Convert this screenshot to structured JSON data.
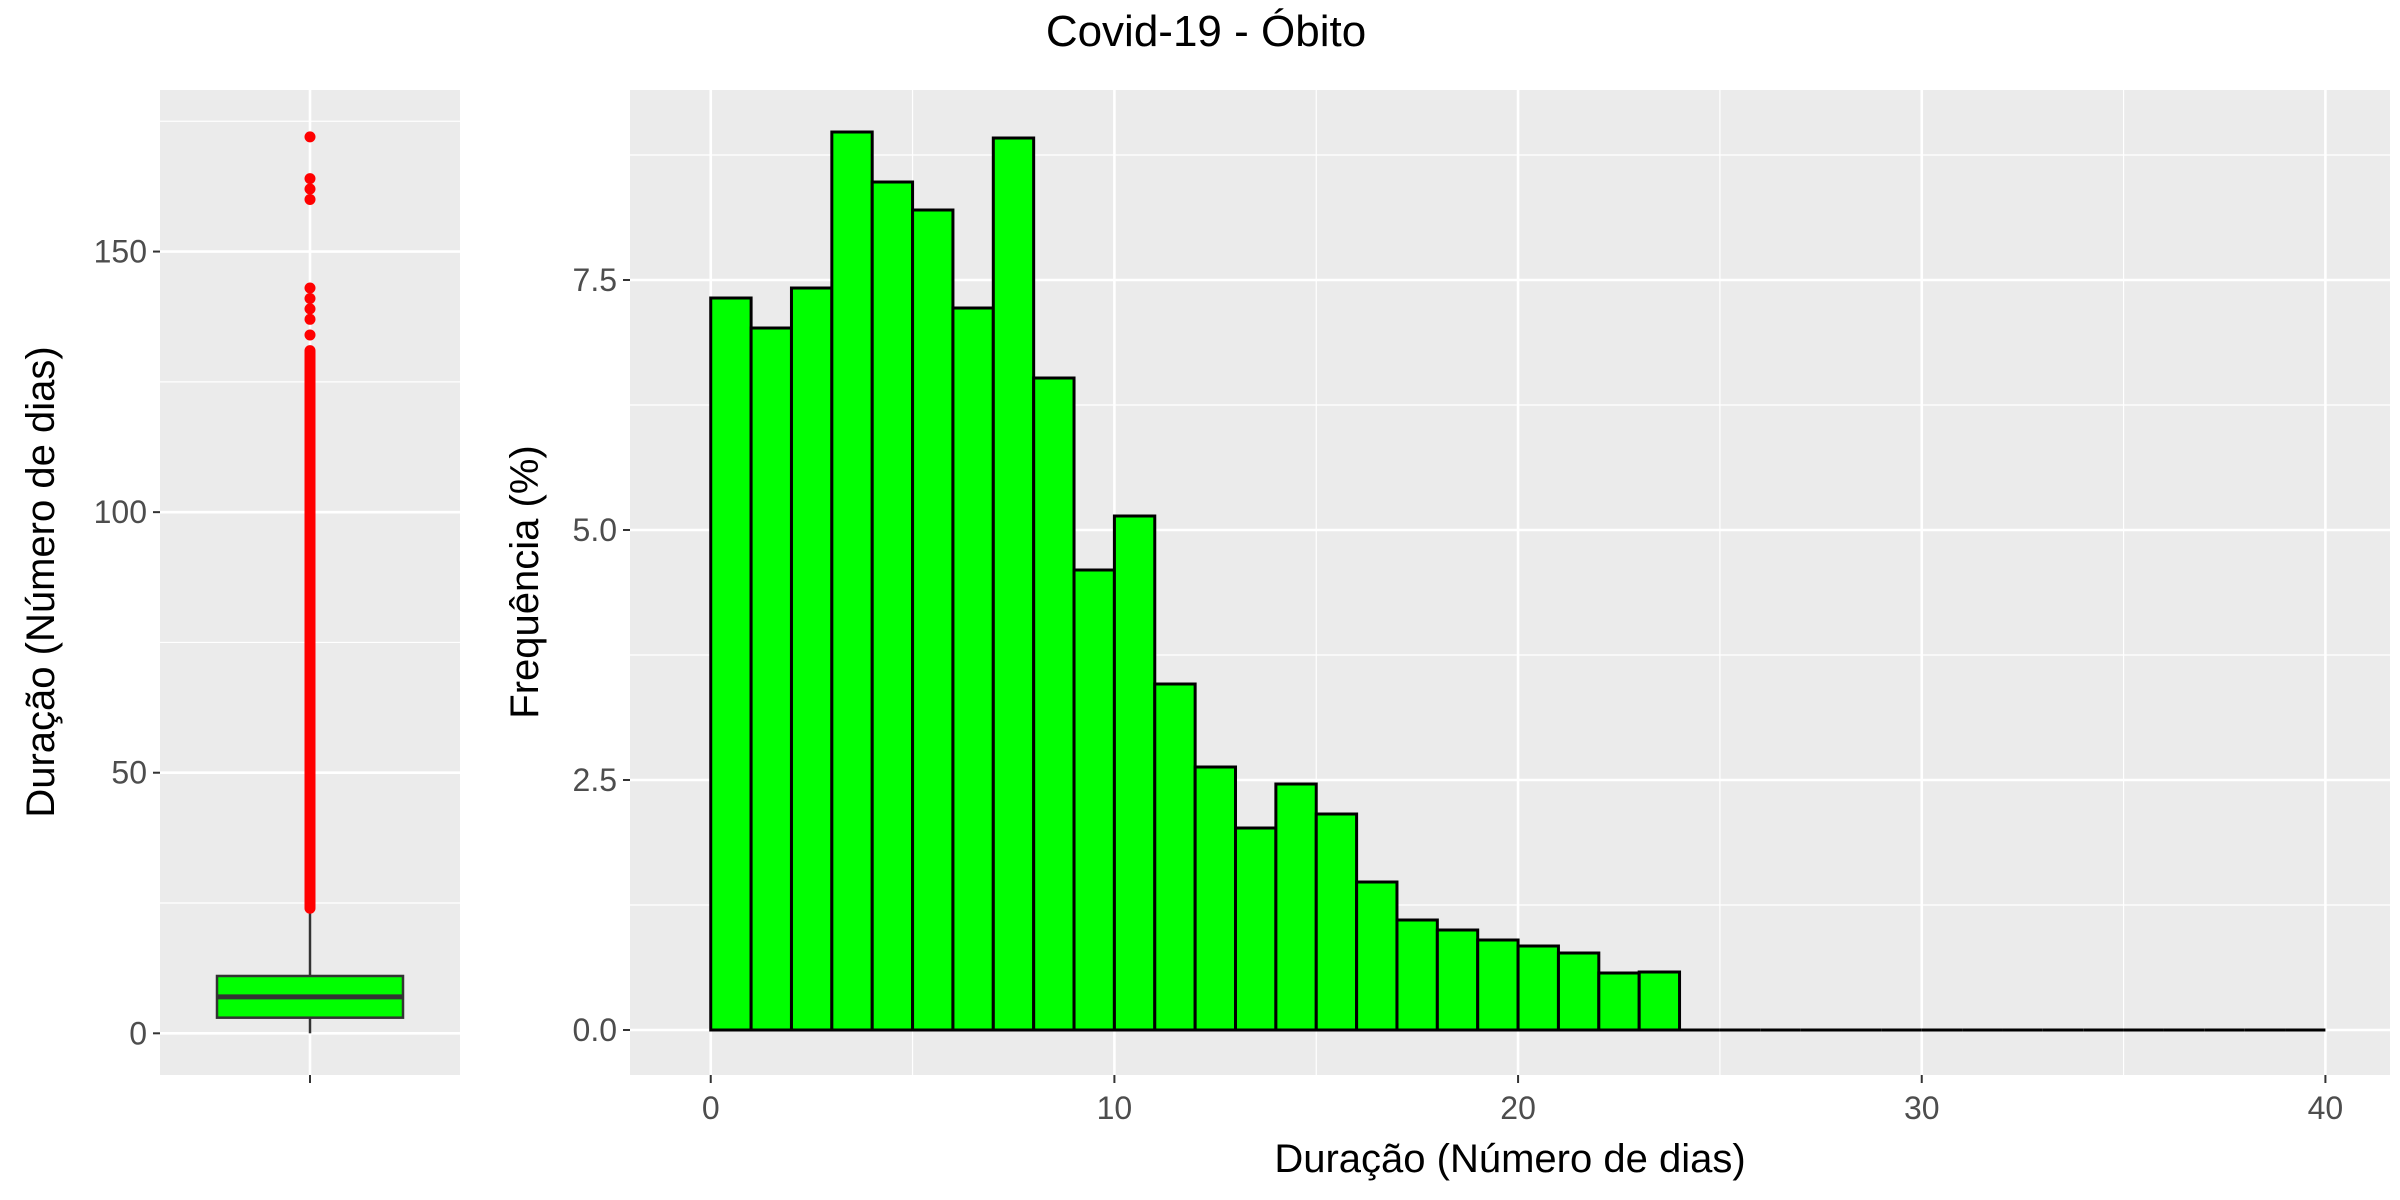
{
  "title": "Covid-19 - Óbito",
  "colors": {
    "panel_bg": "#ebebeb",
    "grid": "#ffffff",
    "fill": "#00ff00",
    "outline": "#000000",
    "outlier": "#ff0000",
    "tick_text": "#4d4d4d"
  },
  "chart_data": [
    {
      "type": "box",
      "ylabel": "Duração (Número de dias)",
      "xlabel": "",
      "ylim": [
        -8,
        181
      ],
      "yticks": [
        0,
        50,
        100,
        150
      ],
      "ytick_labels": [
        "0",
        "50",
        "100",
        "150"
      ],
      "grid": true,
      "box": {
        "min": 0,
        "q1": 3,
        "median": 7,
        "q3": 11,
        "whisker_high": 23
      },
      "outliers_band": [
        24,
        131
      ],
      "outliers": [
        134,
        137,
        139,
        141,
        143,
        160,
        162,
        164,
        172
      ]
    },
    {
      "type": "bar",
      "xlabel": "Duração (Número de dias)",
      "ylabel": "Frequência (%)",
      "xlim": [
        -2,
        41.6
      ],
      "ylim": [
        -0.45,
        9.4
      ],
      "xticks": [
        0,
        10,
        20,
        30,
        40
      ],
      "xtick_labels": [
        "0",
        "10",
        "20",
        "30",
        "40"
      ],
      "yticks": [
        0,
        2.5,
        5.0,
        7.5
      ],
      "ytick_labels": [
        "0.0",
        "2.5",
        "5.0",
        "7.5"
      ],
      "grid": true,
      "bin_start": 0,
      "bin_width": 1,
      "values": [
        7.32,
        7.02,
        7.42,
        8.98,
        8.48,
        8.2,
        7.22,
        8.92,
        6.52,
        4.6,
        5.14,
        3.46,
        2.63,
        2.02,
        2.46,
        2.16,
        1.48,
        1.1,
        1.0,
        0.9,
        0.84,
        0.77,
        0.57,
        0.58,
        0,
        0,
        0,
        0,
        0,
        0,
        0,
        0,
        0,
        0,
        0,
        0,
        0,
        0,
        0,
        0
      ]
    }
  ]
}
